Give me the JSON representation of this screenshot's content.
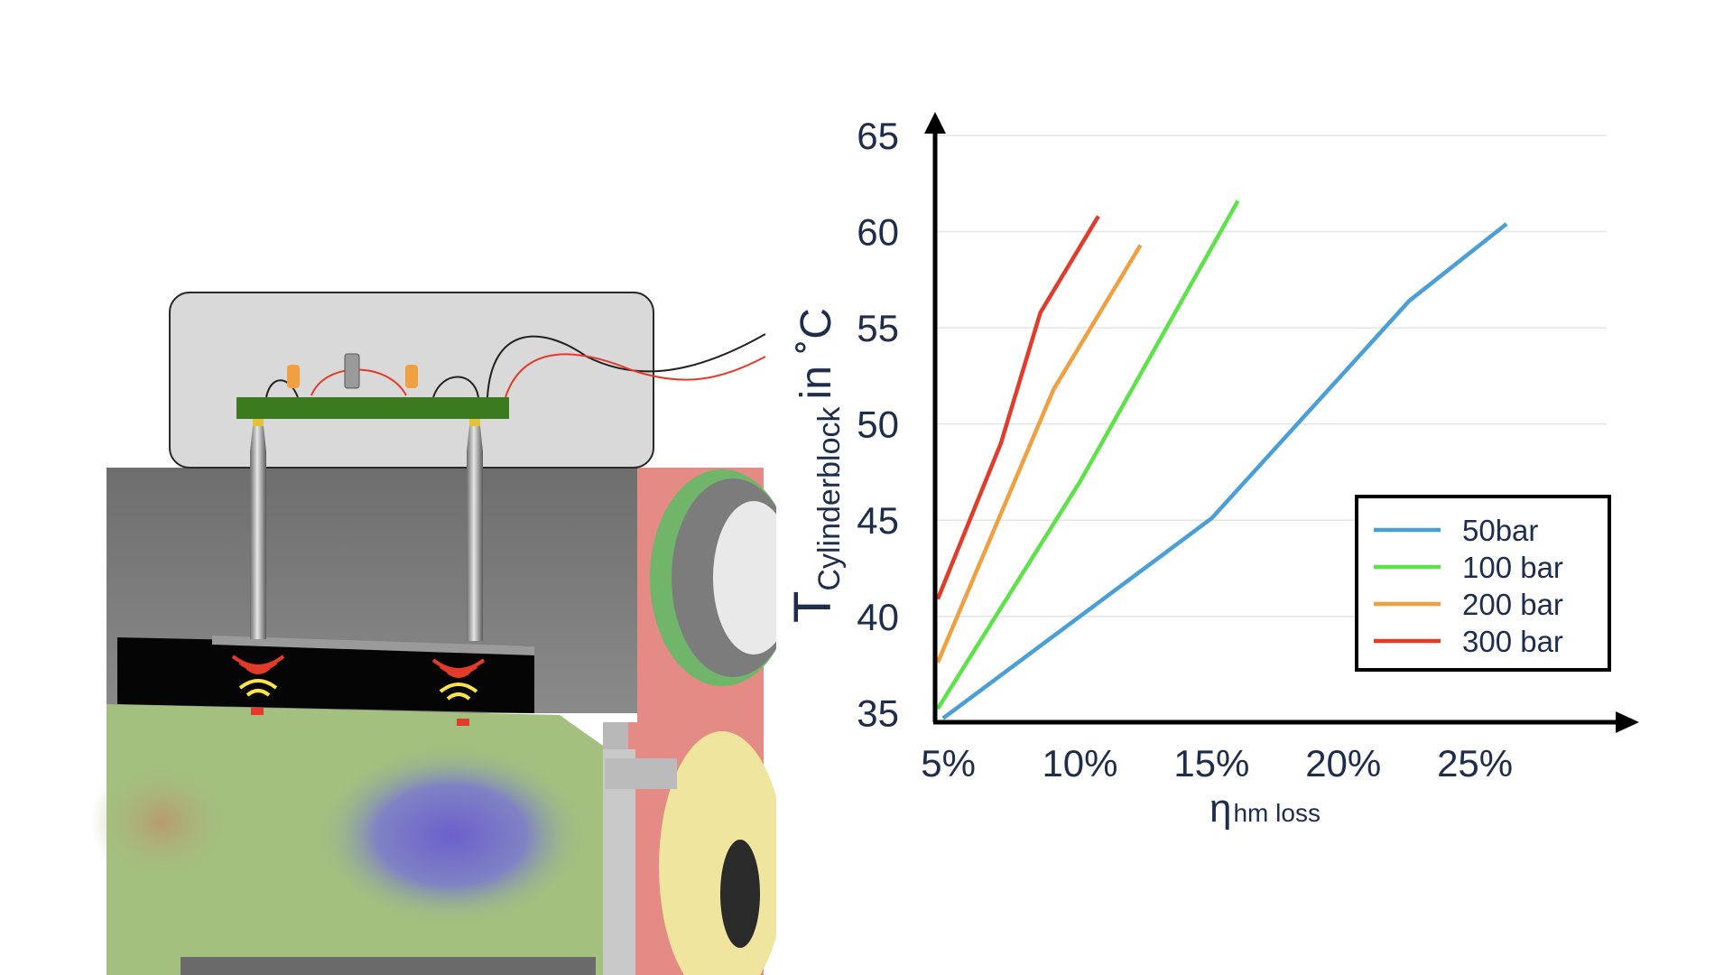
{
  "chart_data": {
    "type": "line",
    "xlabel": {
      "main": "η",
      "sub": "hm loss"
    },
    "ylabel": {
      "main": "T",
      "sub": "Cylinderblock",
      "unit": "in ˚C"
    },
    "x_ticks": [
      "5%",
      "10%",
      "15%",
      "20%",
      "25%"
    ],
    "y_ticks": [
      "35",
      "40",
      "45",
      "50",
      "55",
      "60",
      "65"
    ],
    "xlim": [
      4.5,
      30
    ],
    "ylim": [
      34.5,
      65
    ],
    "grid": "horizontal",
    "legend_position": "bottom-right",
    "series": [
      {
        "name": "50bar",
        "color": "#4a9fd6",
        "points": [
          [
            4.8,
            34.7
          ],
          [
            15,
            45.1
          ],
          [
            22.5,
            56.4
          ],
          [
            26.2,
            60.4
          ]
        ]
      },
      {
        "name": "100 bar",
        "color": "#5ee24a",
        "points": [
          [
            4.6,
            35.2
          ],
          [
            10,
            47
          ],
          [
            16,
            61.6
          ]
        ]
      },
      {
        "name": "200 bar",
        "color": "#f0a040",
        "points": [
          [
            4.6,
            37.6
          ],
          [
            9,
            51.8
          ],
          [
            12.3,
            59.3
          ]
        ]
      },
      {
        "name": "300 bar",
        "color": "#e23b2a",
        "points": [
          [
            4.6,
            40.9
          ],
          [
            7,
            49
          ],
          [
            8.5,
            55.8
          ],
          [
            10.7,
            60.8
          ]
        ]
      }
    ]
  },
  "illustration": {
    "board_color": "#3c7a1f",
    "housing_color": "#d9d9d9",
    "body_color": "#7d7d7d",
    "heatmap_colors": [
      "#9fc07a",
      "#7064c8",
      "#e88b86",
      "#efe49a"
    ]
  }
}
